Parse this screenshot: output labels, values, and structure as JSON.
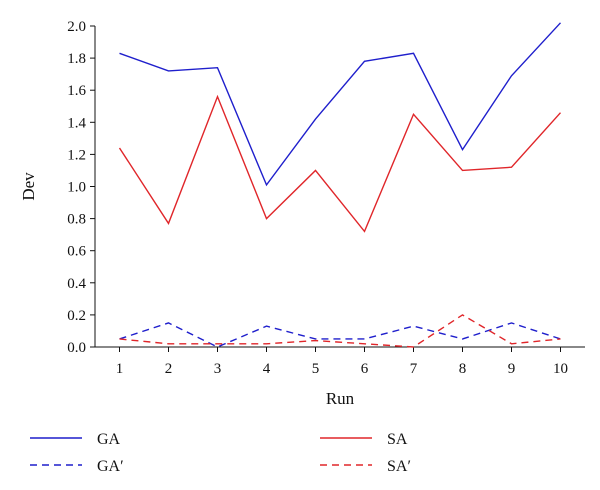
{
  "chart_data": {
    "type": "line",
    "xlabel": "Run",
    "ylabel": "Dev",
    "x": [
      1,
      2,
      3,
      4,
      5,
      6,
      7,
      8,
      9,
      10
    ],
    "xticks": [
      "1",
      "2",
      "3",
      "4",
      "5",
      "6",
      "7",
      "8",
      "9",
      "10"
    ],
    "ylim": [
      0,
      2.0
    ],
    "yticks": [
      "0.0",
      "0.2",
      "0.4",
      "0.6",
      "0.8",
      "1.0",
      "1.2",
      "1.4",
      "1.6",
      "1.8",
      "2.0"
    ],
    "grid": false,
    "legend_position": "bottom",
    "series": [
      {
        "name": "GA",
        "color": "#1f1fcc",
        "dash": "solid",
        "values": [
          1.83,
          1.72,
          1.74,
          1.01,
          1.42,
          1.78,
          1.83,
          1.23,
          1.69,
          2.02
        ]
      },
      {
        "name": "SA",
        "color": "#e0262a",
        "dash": "solid",
        "values": [
          1.24,
          0.77,
          1.56,
          0.8,
          1.1,
          0.72,
          1.45,
          1.1,
          1.12,
          1.46
        ]
      },
      {
        "name": "GA′",
        "color": "#1f1fcc",
        "dash": "dashed",
        "values": [
          0.05,
          0.15,
          0.0,
          0.13,
          0.05,
          0.05,
          0.13,
          0.05,
          0.15,
          0.05
        ]
      },
      {
        "name": "SA′",
        "color": "#e0262a",
        "dash": "dashed",
        "values": [
          0.05,
          0.02,
          0.02,
          0.02,
          0.04,
          0.02,
          0.0,
          0.2,
          0.02,
          0.05
        ]
      }
    ]
  }
}
